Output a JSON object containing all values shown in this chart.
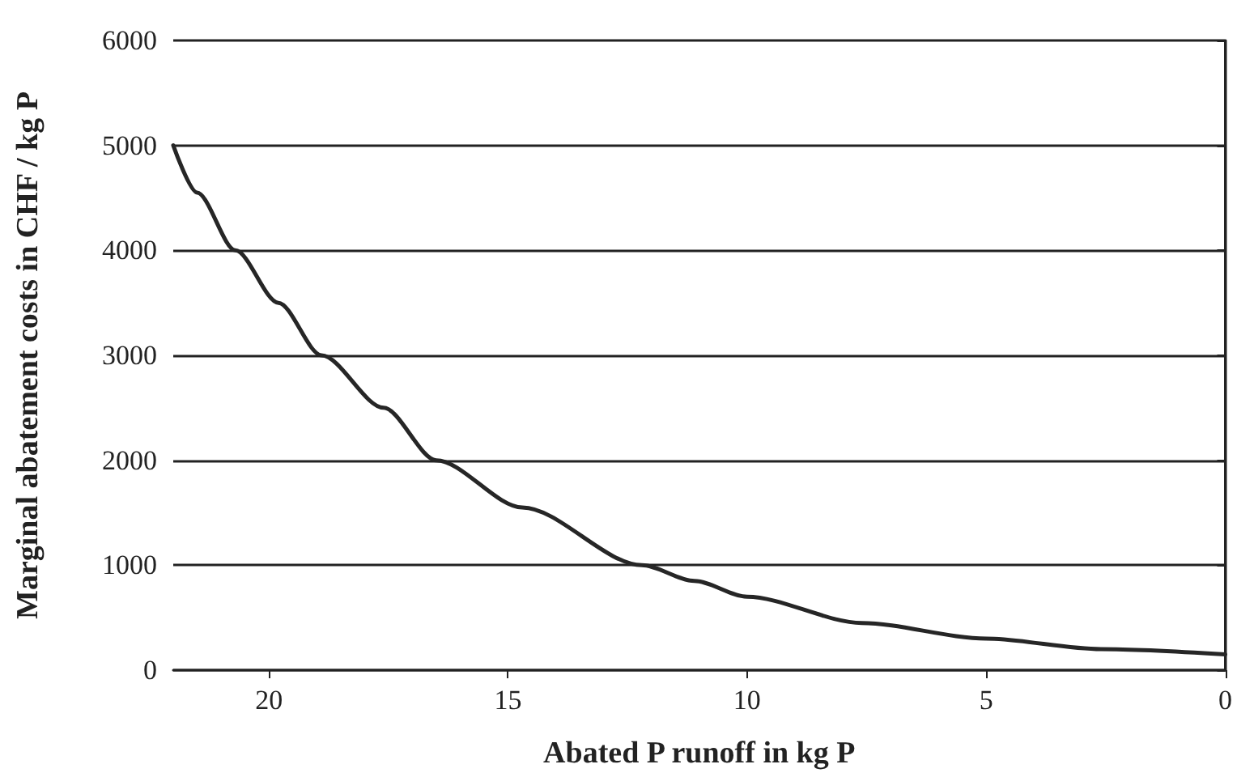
{
  "chart_data": {
    "type": "line",
    "xlabel": "Abated P runoff in kg P",
    "ylabel": "Marginal abatement costs in CHF / kg P",
    "x": [
      22,
      21.5,
      20.7,
      19.8,
      18.9,
      17.6,
      16.5,
      14.7,
      12.2,
      11.1,
      10,
      7.6,
      5,
      2.6,
      0
    ],
    "series": [
      {
        "color": "#262626",
        "values": [
          5000,
          4550,
          4000,
          3500,
          3000,
          2500,
          2000,
          1550,
          1000,
          850,
          700,
          450,
          300,
          200,
          150
        ]
      }
    ],
    "xlim": [
      22,
      0
    ],
    "xticks": [
      20,
      15,
      10,
      5,
      0
    ],
    "ylim": [
      0,
      6000
    ],
    "yticks": [
      0,
      1000,
      2000,
      3000,
      4000,
      5000,
      6000
    ],
    "grid": "y",
    "marker": "none",
    "line_style": "solid"
  }
}
